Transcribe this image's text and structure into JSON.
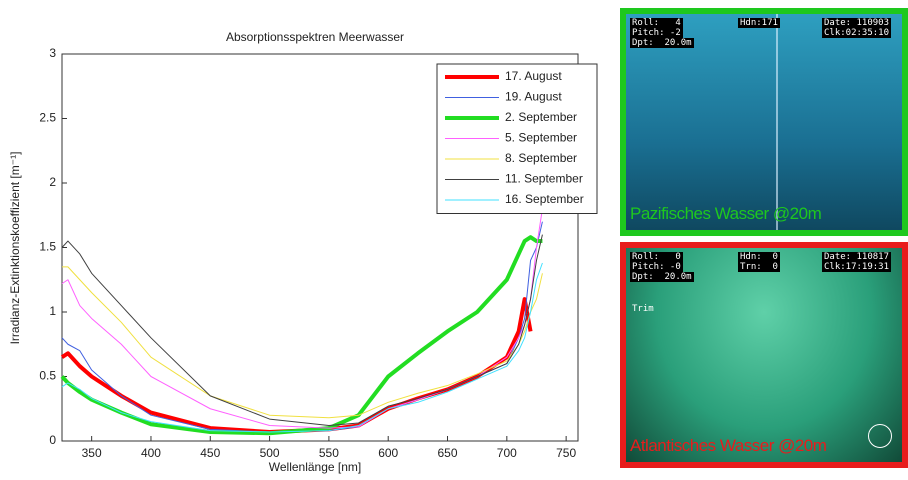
{
  "chart_data": {
    "type": "line",
    "title": "Absorptionsspektren Meerwasser",
    "xlabel": "Wellenlänge [nm]",
    "ylabel": "Irradianz-Extinktionskoeffizient [m⁻¹]",
    "x": [
      325,
      330,
      340,
      350,
      375,
      400,
      450,
      500,
      550,
      575,
      600,
      625,
      650,
      675,
      700,
      710,
      715,
      720,
      725,
      730
    ],
    "xlim": [
      325,
      760
    ],
    "xticks": [
      350,
      400,
      450,
      500,
      550,
      600,
      650,
      700,
      750
    ],
    "ylim": [
      0,
      3
    ],
    "yticks": [
      0,
      0.5,
      1,
      1.5,
      2,
      2.5,
      3
    ],
    "legend": "upper right",
    "series": [
      {
        "name": "17. August",
        "color": "#ff0000",
        "width": 4,
        "values": [
          0.65,
          0.68,
          0.58,
          0.5,
          0.35,
          0.22,
          0.1,
          0.07,
          0.09,
          0.12,
          0.25,
          0.33,
          0.4,
          0.5,
          0.65,
          0.85,
          1.1,
          0.85,
          null,
          null
        ]
      },
      {
        "name": "19. August",
        "color": "#4060e0",
        "width": 1,
        "values": [
          0.8,
          0.75,
          0.7,
          0.55,
          0.35,
          0.2,
          0.09,
          0.07,
          0.08,
          0.11,
          0.25,
          0.32,
          0.4,
          0.5,
          0.6,
          0.8,
          0.95,
          1.4,
          1.5,
          1.7
        ]
      },
      {
        "name": "2. September",
        "color": "#22dd22",
        "width": 4,
        "values": [
          0.5,
          0.45,
          0.38,
          0.32,
          0.22,
          0.13,
          0.07,
          0.06,
          0.1,
          0.2,
          0.5,
          0.68,
          0.85,
          1.0,
          1.25,
          1.45,
          1.55,
          1.58,
          1.55,
          1.55
        ]
      },
      {
        "name": "5. September",
        "color": "#ff60ff",
        "width": 1,
        "values": [
          1.22,
          1.25,
          1.05,
          0.95,
          0.75,
          0.5,
          0.25,
          0.12,
          0.1,
          0.11,
          0.25,
          0.32,
          0.4,
          0.5,
          0.65,
          0.8,
          0.9,
          1.1,
          1.5,
          1.8
        ]
      },
      {
        "name": "8. September",
        "color": "#f0e040",
        "width": 1,
        "values": [
          1.35,
          1.35,
          1.25,
          1.15,
          0.92,
          0.65,
          0.35,
          0.2,
          0.18,
          0.2,
          0.3,
          0.37,
          0.43,
          0.52,
          0.62,
          0.75,
          0.85,
          1.0,
          1.1,
          1.3
        ]
      },
      {
        "name": "11. September",
        "color": "#404040",
        "width": 1,
        "values": [
          1.5,
          1.55,
          1.45,
          1.3,
          1.05,
          0.8,
          0.35,
          0.17,
          0.12,
          0.14,
          0.27,
          0.33,
          0.4,
          0.5,
          0.6,
          0.75,
          0.9,
          1.1,
          1.4,
          1.6
        ]
      },
      {
        "name": "16. September",
        "color": "#40e0ff",
        "width": 1,
        "values": [
          0.42,
          0.45,
          0.4,
          0.33,
          0.22,
          0.15,
          0.08,
          0.07,
          0.08,
          0.12,
          0.25,
          0.3,
          0.38,
          0.48,
          0.58,
          0.7,
          0.8,
          1.0,
          1.25,
          1.38
        ]
      }
    ]
  },
  "photos": [
    {
      "caption": "Pazifisches Wasser @20m",
      "border": "#1ec81e",
      "hud": [
        "Roll:   4",
        "Hdn:171",
        "Date: 110903",
        "Pitch: -2",
        "Clk:02:35:10",
        "Dpt:  20.0m"
      ]
    },
    {
      "caption": "Atlantisches Wasser @20m",
      "border": "#e81c1c",
      "hud": [
        "Roll:   0",
        "Hdn:  0",
        "Date: 110817",
        "Pitch: -0",
        "Trn:  0",
        "Clk:17:19:31",
        "Dpt:  20.0m",
        "Trim"
      ]
    }
  ]
}
